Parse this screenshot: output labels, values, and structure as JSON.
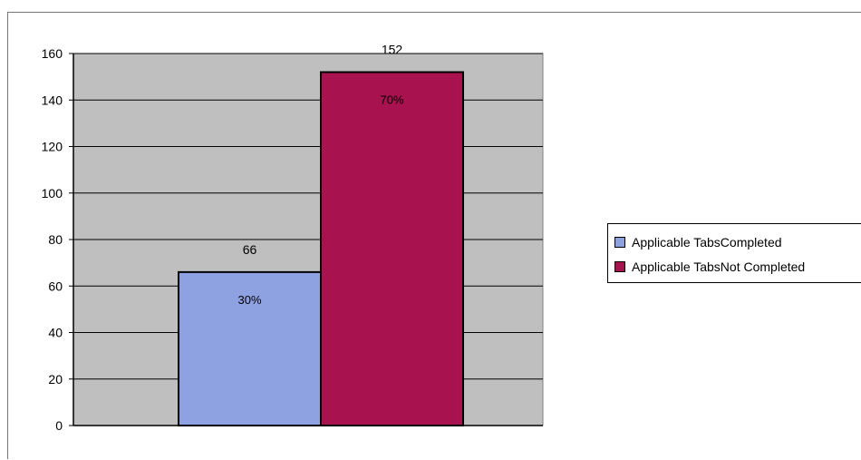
{
  "chart_data": {
    "type": "bar",
    "categories": [
      "Applicable TabsCompleted",
      "Applicable TabsNot Completed"
    ],
    "values": [
      66,
      152
    ],
    "percent_labels": [
      "30%",
      "70%"
    ],
    "value_labels": [
      "66",
      "152"
    ],
    "colors": [
      "#8ea1e0",
      "#a8124e"
    ],
    "plot_background": "#bfbfbf",
    "ylim": [
      0,
      160
    ],
    "yticks": [
      0,
      20,
      40,
      60,
      80,
      100,
      120,
      140,
      160
    ],
    "grid": true,
    "legend": {
      "placement": "right",
      "entries": [
        "Applicable TabsCompleted",
        "Applicable TabsNot Completed"
      ]
    }
  }
}
